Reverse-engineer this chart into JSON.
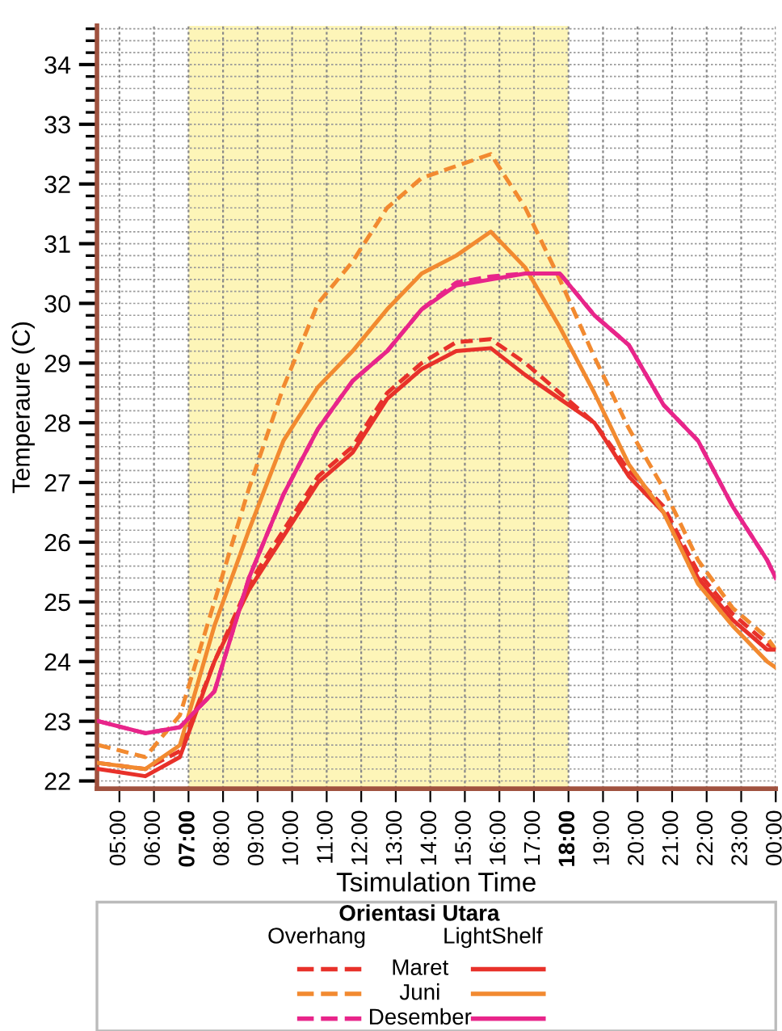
{
  "chart_data": {
    "type": "line",
    "xlabel": "Tsimulation Time",
    "ylabel": "Temperaure (C)",
    "legend_title": "Orientasi Utara",
    "annotations": [
      "Overhang",
      "LightShelf"
    ],
    "x": [
      4.4,
      5.75,
      6.75,
      7.75,
      8.75,
      9.75,
      10.75,
      11.75,
      12.75,
      13.75,
      14.75,
      15.75,
      16.75,
      17.75,
      18.75,
      19.75,
      20.75,
      21.75,
      22.75,
      23.75,
      24.0
    ],
    "series": [
      {
        "name": "Maret",
        "color": "#e8312a",
        "line_style": "dashed",
        "values": [
          22.3,
          22.2,
          22.5,
          24.0,
          25.3,
          26.2,
          27.1,
          27.6,
          28.5,
          29.0,
          29.35,
          29.4,
          29.0,
          28.5,
          28.0,
          27.2,
          26.6,
          25.5,
          24.8,
          24.3,
          24.2
        ]
      },
      {
        "name": "Juni",
        "color": "#f28a30",
        "line_style": "dashed",
        "values": [
          22.6,
          22.4,
          23.1,
          25.0,
          26.9,
          28.6,
          30.0,
          30.7,
          31.6,
          32.1,
          32.3,
          32.5,
          31.6,
          30.4,
          29.1,
          27.9,
          26.9,
          25.7,
          24.9,
          24.4,
          24.2
        ]
      },
      {
        "name": "Desember",
        "color": "#e8258a",
        "line_style": "dashed",
        "values": [
          23.0,
          22.8,
          22.9,
          23.5,
          25.4,
          26.8,
          27.9,
          28.7,
          29.2,
          29.9,
          30.35,
          30.45,
          30.5,
          30.5,
          29.8,
          29.3,
          28.3,
          27.7,
          26.6,
          25.7,
          25.4
        ]
      },
      {
        "color": "#e8312a",
        "line_style": "solid",
        "values": [
          22.2,
          22.08,
          22.4,
          24.0,
          25.2,
          26.1,
          27.0,
          27.5,
          28.4,
          28.9,
          29.2,
          29.25,
          28.8,
          28.4,
          28.0,
          27.1,
          26.5,
          25.4,
          24.7,
          24.2,
          24.2
        ]
      },
      {
        "color": "#f28a30",
        "line_style": "solid",
        "values": [
          22.3,
          22.2,
          22.6,
          24.6,
          26.2,
          27.7,
          28.6,
          29.2,
          29.9,
          30.5,
          30.8,
          31.2,
          30.6,
          29.6,
          28.5,
          27.3,
          26.5,
          25.3,
          24.6,
          24.0,
          23.9
        ]
      },
      {
        "color": "#e8258a",
        "line_style": "solid",
        "values": [
          23.0,
          22.8,
          22.9,
          23.5,
          25.4,
          26.8,
          27.9,
          28.7,
          29.2,
          29.9,
          30.3,
          30.4,
          30.5,
          30.5,
          29.8,
          29.3,
          28.3,
          27.7,
          26.6,
          25.7,
          25.4
        ]
      }
    ],
    "xlim": [
      4.35,
      24.0
    ],
    "ylim": [
      21.87,
      34.65
    ],
    "xticks": [
      {
        "value": 5,
        "label": "05:00"
      },
      {
        "value": 6,
        "label": "06:00"
      },
      {
        "value": 7,
        "label": "07:00"
      },
      {
        "value": 8,
        "label": "08:00"
      },
      {
        "value": 9,
        "label": "09:00"
      },
      {
        "value": 10,
        "label": "10:00"
      },
      {
        "value": 11,
        "label": "11:00"
      },
      {
        "value": 12,
        "label": "12:00"
      },
      {
        "value": 13,
        "label": "13:00"
      },
      {
        "value": 14,
        "label": "14:00"
      },
      {
        "value": 15,
        "label": "15:00"
      },
      {
        "value": 16,
        "label": "16:00"
      },
      {
        "value": 17,
        "label": "17:00"
      },
      {
        "value": 18,
        "label": "18:00"
      },
      {
        "value": 19,
        "label": "19:00"
      },
      {
        "value": 20,
        "label": "20:00"
      },
      {
        "value": 21,
        "label": "21:00"
      },
      {
        "value": 22,
        "label": "22:00"
      },
      {
        "value": 23,
        "label": "23:00"
      },
      {
        "value": 24,
        "label": "00:00"
      }
    ],
    "yticks": [
      22,
      23,
      24,
      25,
      26,
      27,
      28,
      29,
      30,
      31,
      32,
      33,
      34
    ],
    "bands": [
      {
        "axis": "x",
        "from": 7,
        "to": 18,
        "color": "#fdf5b8"
      }
    ],
    "grid": true,
    "legend": "bottom",
    "marker": "none"
  }
}
